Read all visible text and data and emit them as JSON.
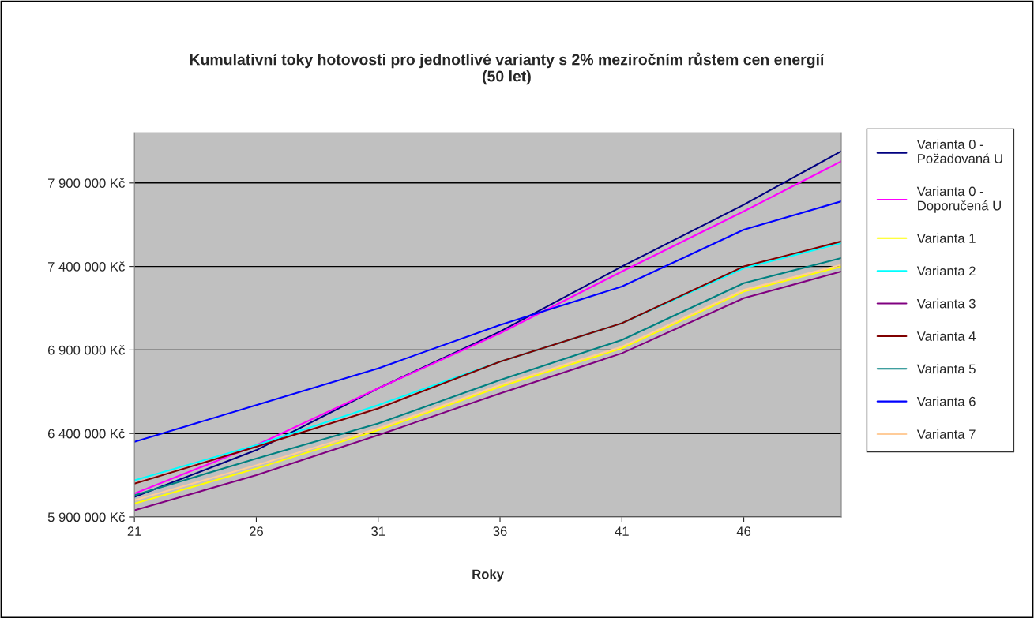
{
  "chart_data": {
    "type": "line",
    "title": "Kumulativní toky hotovosti pro jednotlivé varianty s 2% meziročním růstem cen energií\n(50 let)",
    "xlabel": "Roky",
    "x": [
      21,
      26,
      31,
      36,
      41,
      46,
      50
    ],
    "series": [
      {
        "name": "Varianta 0 -\nPožadovaná U",
        "color": "#000080",
        "values": [
          6020000,
          6300000,
          6670000,
          7010000,
          7400000,
          7770000,
          8090000
        ]
      },
      {
        "name": "Varianta 0 -\nDoporučená U",
        "color": "#ff00ff",
        "values": [
          6040000,
          6330000,
          6670000,
          7000000,
          7370000,
          7730000,
          8030000
        ]
      },
      {
        "name": "Varianta 1",
        "color": "#ffff00",
        "values": [
          5980000,
          6190000,
          6420000,
          6680000,
          6910000,
          7250000,
          7400000
        ]
      },
      {
        "name": "Varianta 2",
        "color": "#00ffff",
        "values": [
          6120000,
          6330000,
          6570000,
          6830000,
          7060000,
          7390000,
          7540000
        ]
      },
      {
        "name": "Varianta 3",
        "color": "#800080",
        "values": [
          5940000,
          6150000,
          6390000,
          6640000,
          6880000,
          7210000,
          7370000
        ]
      },
      {
        "name": "Varianta 4",
        "color": "#800000",
        "values": [
          6100000,
          6320000,
          6550000,
          6830000,
          7060000,
          7400000,
          7550000
        ]
      },
      {
        "name": "Varianta 5",
        "color": "#008080",
        "values": [
          6030000,
          6250000,
          6460000,
          6720000,
          6960000,
          7300000,
          7450000
        ]
      },
      {
        "name": "Varianta 6",
        "color": "#0000ff",
        "values": [
          6350000,
          6570000,
          6790000,
          7050000,
          7280000,
          7620000,
          7790000
        ]
      },
      {
        "name": "Varianta 7",
        "color": "#ffcc99",
        "values": [
          6000000,
          6210000,
          6430000,
          6690000,
          6920000,
          7260000,
          7410000
        ]
      }
    ],
    "xlim": [
      21,
      50
    ],
    "xticks": [
      21,
      26,
      31,
      36,
      41,
      46
    ],
    "ylim": [
      5900000,
      8200000
    ],
    "yticks": [
      {
        "value": 5900000,
        "label": "5 900 000 Kč"
      },
      {
        "value": 6400000,
        "label": "6 400 000 Kč"
      },
      {
        "value": 6900000,
        "label": "6 900 000 Kč"
      },
      {
        "value": 7400000,
        "label": "7 400 000 Kč"
      },
      {
        "value": 7900000,
        "label": "7 900 000 Kč"
      }
    ],
    "grid": "y",
    "legend": "right",
    "marker": "none",
    "line_style": "solid"
  }
}
